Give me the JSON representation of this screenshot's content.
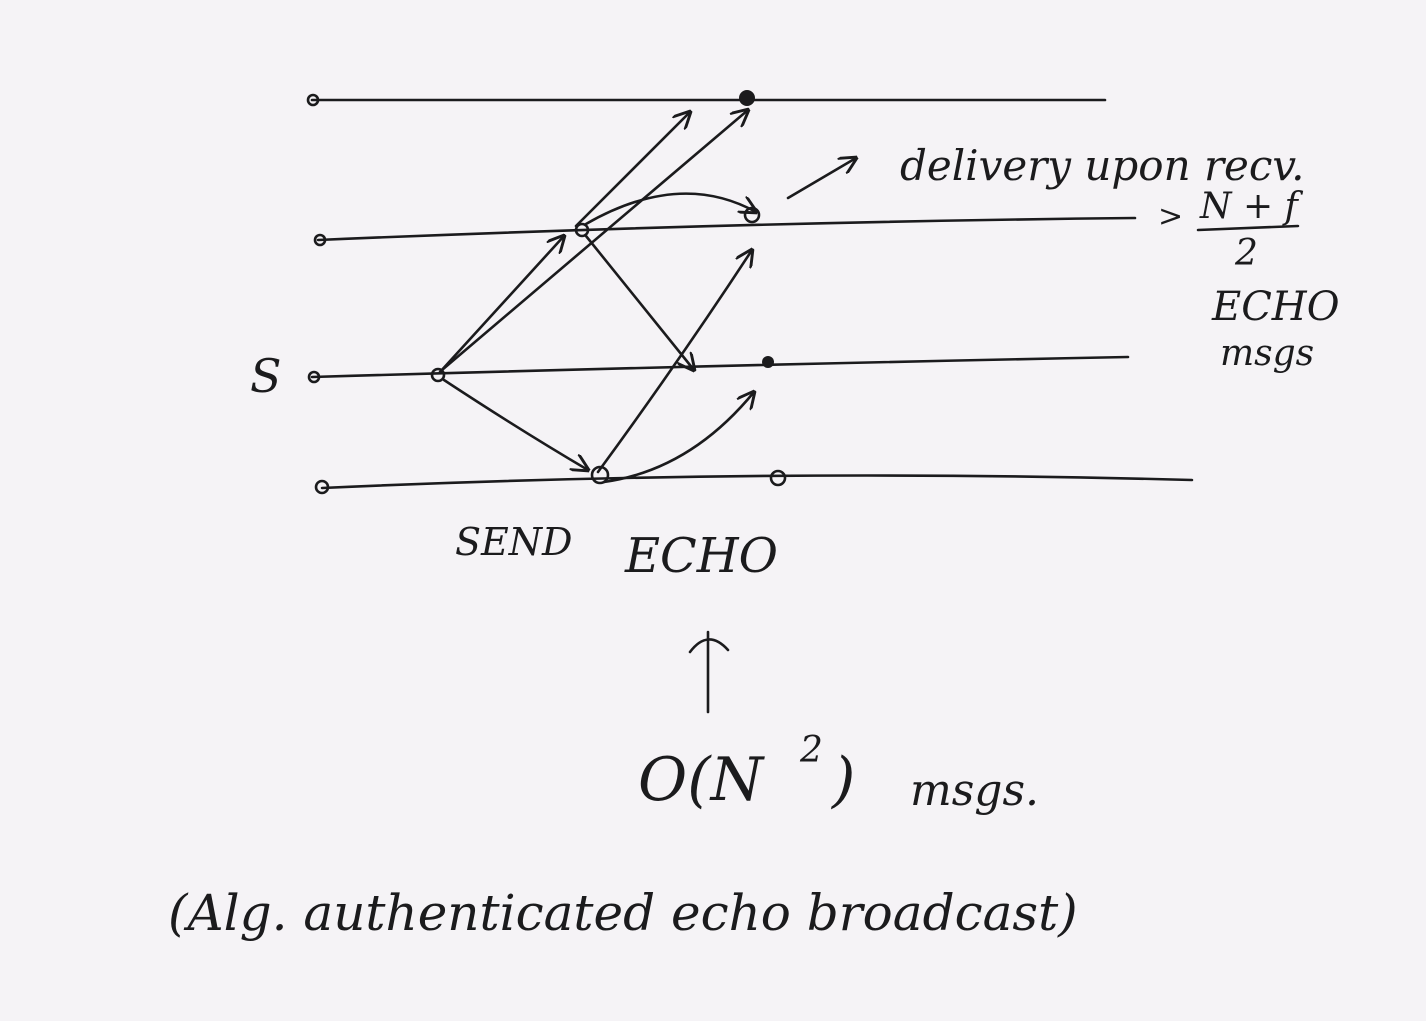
{
  "diagram": {
    "sender_label": "S",
    "phase_labels": {
      "send": "SEND",
      "echo": "ECHO"
    },
    "delivery_note": {
      "line1": "delivery upon recv.",
      "threshold_prefix": ">",
      "numerator": "N + f",
      "denominator": "2",
      "line4": "ECHO",
      "line5": "msgs"
    },
    "complexity": {
      "big_o": "O(N",
      "exponent": "2",
      "close": ")",
      "unit": "msgs."
    },
    "caption": "(Alg. authenticated echo broadcast)",
    "ink_color": "#1b1b1d",
    "background_color": "#f5f3f6"
  }
}
